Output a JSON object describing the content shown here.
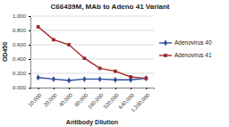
{
  "chart_data": {
    "type": "line",
    "title": "C66439M, MAb to Adeno 41 Variant",
    "x_label": "Antibody Dilution",
    "y_label": "OD450",
    "categories": [
      "10,000",
      "20,000",
      "40,000",
      "80,000",
      "160,000",
      "320,000",
      "640,000",
      "1,280,000"
    ],
    "series": [
      {
        "name": "Adenovirus 40",
        "color": "#2c4d9a",
        "marker": "diamond",
        "values": [
          0.14,
          0.12,
          0.1,
          0.12,
          0.12,
          0.11,
          0.11,
          0.13
        ]
      },
      {
        "name": "Adenovirus 41",
        "color": "#9c2a2a",
        "marker": "square",
        "values": [
          0.85,
          0.67,
          0.6,
          0.41,
          0.27,
          0.23,
          0.15,
          0.13
        ]
      }
    ],
    "ylim": [
      0,
      1
    ],
    "yticks": [
      {
        "value": 0,
        "label": "0.000"
      },
      {
        "value": 0.2,
        "label": "0.200"
      },
      {
        "value": 0.4,
        "label": "0.400"
      },
      {
        "value": 0.6,
        "label": "0.600"
      },
      {
        "value": 0.8,
        "label": "0.800"
      },
      {
        "value": 1,
        "label": "1.000"
      }
    ],
    "grid": true,
    "legend": "right"
  }
}
